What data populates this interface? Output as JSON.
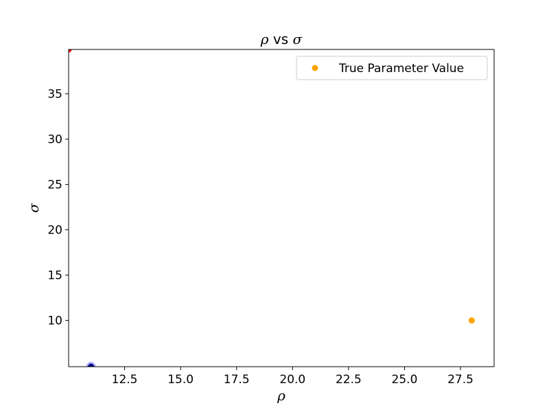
{
  "chart_data": {
    "type": "scatter",
    "title": {
      "pre": "ρ",
      "mid": " vs ",
      "post": "σ"
    },
    "xlabel": "ρ",
    "ylabel": "σ",
    "xlim": [
      10.0,
      29.0
    ],
    "ylim": [
      4.9,
      39.9
    ],
    "xticks": [
      12.5,
      15.0,
      17.5,
      20.0,
      22.5,
      25.0,
      27.5
    ],
    "xtick_labels": [
      "12.5",
      "15.0",
      "17.5",
      "20.0",
      "22.5",
      "25.0",
      "27.5"
    ],
    "yticks": [
      10,
      15,
      20,
      25,
      30,
      35
    ],
    "ytick_labels": [
      "10",
      "15",
      "20",
      "25",
      "30",
      "35"
    ],
    "grid": false,
    "legend_position": "top-right",
    "series": [
      {
        "name": "True Parameter Value",
        "color": "#ffa500",
        "points": [
          {
            "x": 28.0,
            "y": 10.0
          }
        ]
      },
      {
        "color": "#0000ff",
        "opacity": 0.3,
        "points": [
          {
            "x": 11.0,
            "y": 4.9
          }
        ]
      },
      {
        "color": "#000080",
        "points": [
          {
            "x": 11.0,
            "y": 4.9
          }
        ]
      },
      {
        "color": "#ff0000",
        "points": [
          {
            "x": 10.0,
            "y": 39.9
          }
        ]
      }
    ],
    "legend": [
      {
        "label": "True Parameter Value",
        "color": "#ffa500"
      }
    ]
  }
}
